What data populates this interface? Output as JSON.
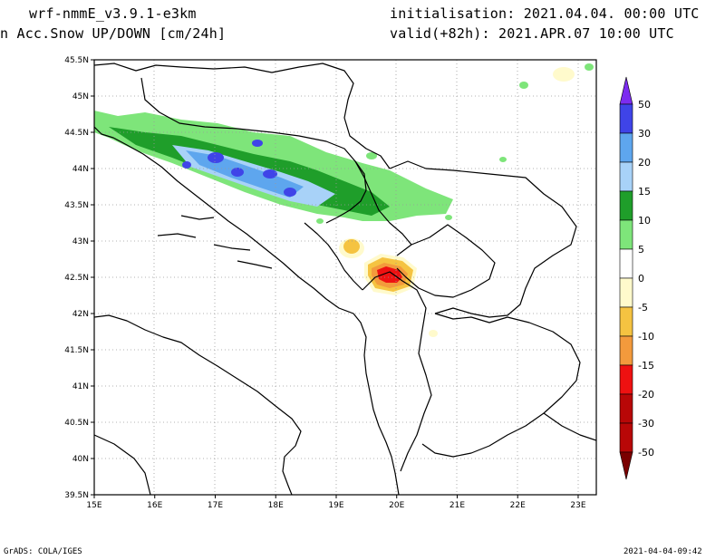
{
  "header": {
    "model": "wrf-nmmE_v3.9.1-e3km",
    "field": "n Acc.Snow UP/DOWN [cm/24h]",
    "init": "initialisation: 2021.04.04.  00:00 UTC",
    "valid": "valid(+82h): 2021.APR.07 10:00 UTC"
  },
  "map": {
    "lon_range": [
      15,
      23.3
    ],
    "lat_range": [
      39.5,
      45.5
    ],
    "lon_ticks": [
      "15E",
      "16E",
      "17E",
      "18E",
      "19E",
      "20E",
      "21E",
      "22E",
      "23E"
    ],
    "lat_ticks": [
      "39.5N",
      "40N",
      "40.5N",
      "41N",
      "41.5N",
      "42N",
      "42.5N",
      "43N",
      "43.5N",
      "44N",
      "44.5N",
      "45N",
      "45.5N"
    ]
  },
  "colorbar": {
    "labels": [
      "50",
      "30",
      "20",
      "15",
      "10",
      "5",
      "0",
      "-5",
      "-10",
      "-15",
      "-20",
      "-30",
      "-50"
    ],
    "colors": [
      "#7c2cf0",
      "#3f44e8",
      "#5ea6ee",
      "#a8d2f8",
      "#1f9e2a",
      "#7ee57a",
      "#ffffff",
      "#fffacc",
      "#f5c341",
      "#f39a3c",
      "#ee1111",
      "#b80707",
      "#7a0000"
    ]
  },
  "footer": {
    "left": "GrADS: COLA/IGES",
    "right": "2021-04-04-09:42"
  }
}
